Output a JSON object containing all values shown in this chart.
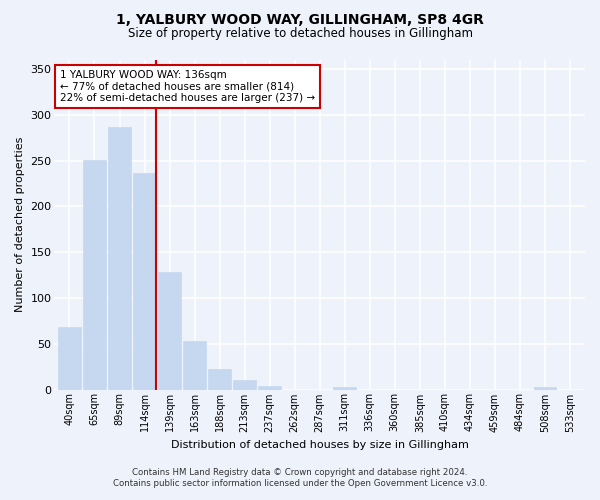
{
  "title": "1, YALBURY WOOD WAY, GILLINGHAM, SP8 4GR",
  "subtitle": "Size of property relative to detached houses in Gillingham",
  "xlabel": "Distribution of detached houses by size in Gillingham",
  "ylabel": "Number of detached properties",
  "categories": [
    "40sqm",
    "65sqm",
    "89sqm",
    "114sqm",
    "139sqm",
    "163sqm",
    "188sqm",
    "213sqm",
    "237sqm",
    "262sqm",
    "287sqm",
    "311sqm",
    "336sqm",
    "360sqm",
    "385sqm",
    "410sqm",
    "434sqm",
    "459sqm",
    "484sqm",
    "508sqm",
    "533sqm"
  ],
  "values": [
    68,
    251,
    287,
    237,
    128,
    53,
    22,
    10,
    4,
    0,
    0,
    3,
    0,
    0,
    0,
    0,
    0,
    0,
    0,
    3,
    0
  ],
  "bar_color": "#c5d8ef",
  "highlight_line_color": "#cc0000",
  "ylim": [
    0,
    360
  ],
  "yticks": [
    0,
    50,
    100,
    150,
    200,
    250,
    300,
    350
  ],
  "annotation_line1": "1 YALBURY WOOD WAY: 136sqm",
  "annotation_line2": "← 77% of detached houses are smaller (814)",
  "annotation_line3": "22% of semi-detached houses are larger (237) →",
  "background_color": "#eef2fa",
  "grid_color": "#ffffff",
  "footer_line1": "Contains HM Land Registry data © Crown copyright and database right 2024.",
  "footer_line2": "Contains public sector information licensed under the Open Government Licence v3.0."
}
